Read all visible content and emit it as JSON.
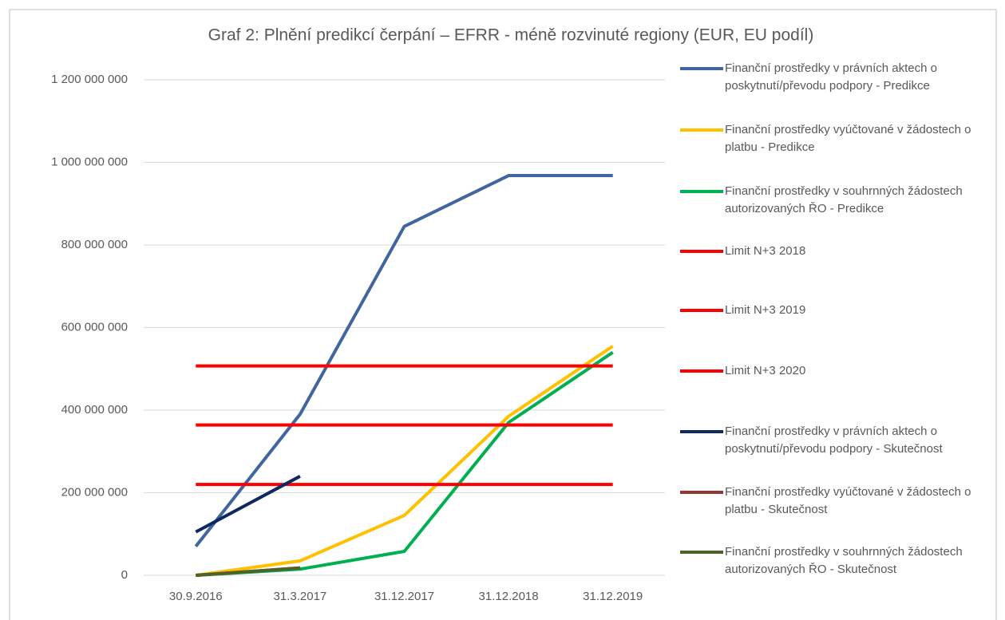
{
  "chart_data": {
    "type": "line",
    "title": "Graf 2: Plnění predikcí čerpání – EFRR - méně rozvinuté regiony (EUR, EU podíl)",
    "categories": [
      "30.9.2016",
      "31.3.2017",
      "31.12.2017",
      "31.12.2018",
      "31.12.2019"
    ],
    "series": [
      {
        "name": "Finanční prostředky v právních aktech o poskytnutí/převodu podpory - Predikce",
        "color": "#41659e",
        "values": [
          70000000,
          390000000,
          845000000,
          968000000,
          968000000
        ]
      },
      {
        "name": "Finanční prostředky vyúčtované v žádostech o platbu - Predikce",
        "color": "#ffc000",
        "values": [
          0,
          35000000,
          145000000,
          385000000,
          555000000
        ]
      },
      {
        "name": "Finanční prostředky v souhrnných žádostech autorizovaných ŘO - Predikce",
        "color": "#00b050",
        "values": [
          0,
          15000000,
          58000000,
          370000000,
          540000000
        ]
      },
      {
        "name": "Limit N+3 2018",
        "color": "#ff0000",
        "values": [
          220000000,
          220000000,
          220000000,
          220000000,
          220000000
        ]
      },
      {
        "name": "Limit N+3 2019",
        "color": "#ff0000",
        "values": [
          364000000,
          364000000,
          364000000,
          364000000,
          364000000
        ]
      },
      {
        "name": "Limit N+3 2020",
        "color": "#ff0000",
        "values": [
          507000000,
          507000000,
          507000000,
          507000000,
          507000000
        ]
      },
      {
        "name": "Finanční prostředky v právních aktech o poskytnutí/převodu podpory - Skutečnost",
        "color": "#0f2860",
        "values": [
          105000000,
          240000000,
          null,
          null,
          null
        ]
      },
      {
        "name": "Finanční prostředky vyúčtované v žádostech o platbu - Skutečnost",
        "color": "#943634",
        "values": [
          0,
          18000000,
          null,
          null,
          null
        ]
      },
      {
        "name": "Finanční prostředky v souhrnných žádostech autorizovaných ŘO - Skutečnost",
        "color": "#4f6228",
        "values": [
          0,
          18000000,
          null,
          null,
          null
        ]
      }
    ],
    "ylim": [
      0,
      1200000000
    ],
    "yticks": [
      0,
      {
        "value": 200000000,
        "label": "200 000 000"
      },
      {
        "value": 400000000,
        "label": "400 000 000"
      },
      {
        "value": 600000000,
        "label": "600 000 000"
      },
      {
        "value": 800000000,
        "label": "800 000 000"
      },
      {
        "value": 1000000000,
        "label": "1 000 000 000"
      },
      {
        "value": 1200000000,
        "label": "1 200 000 000"
      }
    ],
    "grid": true,
    "legend": "right"
  }
}
